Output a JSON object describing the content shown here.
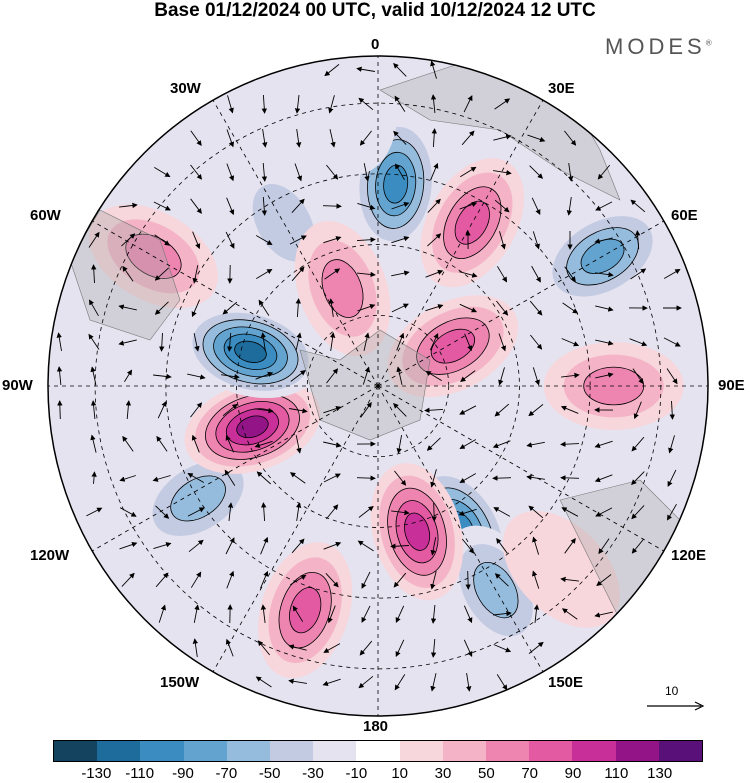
{
  "title": "Base 01/12/2024 00 UTC, valid 10/12/2024 12 UTC",
  "brand": "MODES",
  "brand_mark": "®",
  "longitude_labels": {
    "lon_0": "0",
    "lon_30e": "30E",
    "lon_60e": "60E",
    "lon_90e": "90E",
    "lon_120e": "120E",
    "lon_150e": "150E",
    "lon_180": "180",
    "lon_150w": "150W",
    "lon_120w": "120W",
    "lon_90w": "90W",
    "lon_60w": "60W",
    "lon_30w": "30W"
  },
  "reference_vector": {
    "label": "10"
  },
  "colorbar": {
    "colors": [
      "#14435f",
      "#1d6c9b",
      "#3a8cc1",
      "#62a3cf",
      "#96bcdd",
      "#c3cbe3",
      "#e6e3f0",
      "#ffffff",
      "#f7d6dc",
      "#f4b3c6",
      "#ee85b1",
      "#e35aa3",
      "#c92f98",
      "#921487",
      "#5a1079"
    ],
    "labels": [
      "-130",
      "-110",
      "-90",
      "-70",
      "-50",
      "-30",
      "-10",
      "10",
      "30",
      "50",
      "70",
      "90",
      "110",
      "130"
    ]
  },
  "anomaly_centers": [
    {
      "lon": 5,
      "lat": 47,
      "value": -110
    },
    {
      "lon": 30,
      "lat": 50,
      "value": 80
    },
    {
      "lon": 60,
      "lat": 35,
      "value": -95
    },
    {
      "lon": 62,
      "lat": 72,
      "value": 90
    },
    {
      "lon": 90,
      "lat": 40,
      "value": 60
    },
    {
      "lon": 150,
      "lat": 55,
      "value": -110
    },
    {
      "lon": 150,
      "lat": 40,
      "value": -60
    },
    {
      "lon": 165,
      "lat": 58,
      "value": 110
    },
    {
      "lon": 135,
      "lat": 35,
      "value": 30
    },
    {
      "lon": 198,
      "lat": 40,
      "value": 80
    },
    {
      "lon": 238,
      "lat": 45,
      "value": -75
    },
    {
      "lon": 252,
      "lat": 62,
      "value": 130
    },
    {
      "lon": 285,
      "lat": 62,
      "value": -130
    },
    {
      "lon": 300,
      "lat": 35,
      "value": 60
    },
    {
      "lon": 330,
      "lat": 50,
      "value": -45
    },
    {
      "lon": 340,
      "lat": 68,
      "value": 70
    },
    {
      "lon": 355,
      "lat": 30,
      "value": -20
    }
  ]
}
